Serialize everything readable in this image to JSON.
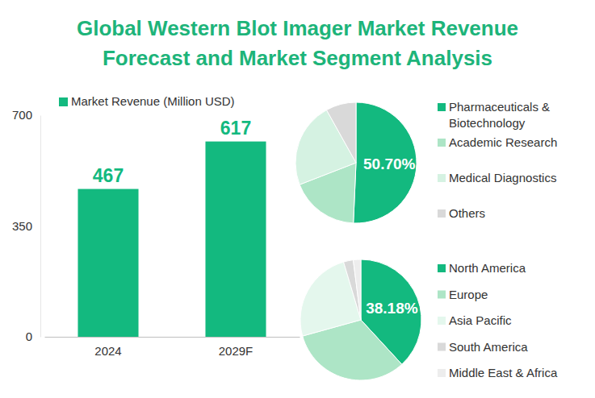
{
  "chart_data": [
    {
      "type": "bar",
      "title": "Global Western Blot Imager Market Revenue Forecast and Market Segment Analysis",
      "categories": [
        "2024",
        "2029F"
      ],
      "series": [
        {
          "name": "Market Revenue (Million USD)",
          "color": "#13b97f",
          "values": [
            467,
            617
          ]
        }
      ],
      "ylim": [
        0,
        700
      ],
      "yticks": [
        0,
        350,
        700
      ],
      "grid": false,
      "data_labels": true,
      "legend": "top-left"
    },
    {
      "type": "pie",
      "categories": [
        "Pharmaceuticals & Biotechnology",
        "Academic Research",
        "Medical Diagnostics",
        "Others"
      ],
      "values": [
        50.7,
        18.4,
        22.8,
        8.1
      ],
      "value_labels": [
        "50.70%",
        null,
        null,
        null
      ],
      "colors": [
        "#13b97f",
        "#ade5c6",
        "#d5f2e2",
        "#d9d9d9"
      ],
      "legend": "right"
    },
    {
      "type": "pie",
      "categories": [
        "North America",
        "Europe",
        "Asia Pacific",
        "South America",
        "Middle East & Africa"
      ],
      "values": [
        38.18,
        32.5,
        24.7,
        2.6,
        2.02
      ],
      "value_labels": [
        "38.18%",
        null,
        null,
        null,
        null
      ],
      "colors": [
        "#13b97f",
        "#ade5c6",
        "#e4f7ed",
        "#d9d9d9",
        "#ededed"
      ],
      "legend": "right"
    }
  ]
}
